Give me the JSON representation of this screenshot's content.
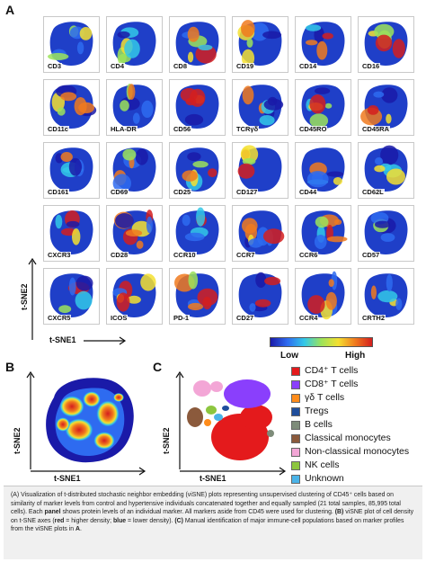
{
  "panel_a": {
    "letter": "A",
    "markers": [
      [
        "CD3",
        "CD4",
        "CD8",
        "CD19",
        "CD14",
        "CD16"
      ],
      [
        "CD11c",
        "HLA-DR",
        "CD56",
        "TCRγδ",
        "CD45RO",
        "CD45RA"
      ],
      [
        "CD161",
        "CD69",
        "CD25",
        "CD127",
        "CD44",
        "CD62L"
      ],
      [
        "CXCR3",
        "CD28",
        "CCR10",
        "CCR7",
        "CCR6",
        "CD57"
      ],
      [
        "CXCR5",
        "ICOS",
        "PD-1",
        "CD27",
        "CCR4",
        "CRTH2"
      ]
    ],
    "y_axis": "t-SNE2",
    "x_axis": "t-SNE1",
    "scale_low": "Low",
    "scale_high": "High"
  },
  "panel_b": {
    "letter": "B",
    "y_axis": "t-SNE2",
    "x_axis": "t-SNE1"
  },
  "panel_c": {
    "letter": "C",
    "y_axis": "t-SNE2",
    "x_axis": "t-SNE1",
    "legend": [
      {
        "label": "CD4⁺ T cells",
        "color": "#e41a1c"
      },
      {
        "label": "CD8⁺ T cells",
        "color": "#8a3ffc"
      },
      {
        "label": "γδ T cells",
        "color": "#ff8c1a"
      },
      {
        "label": "Tregs",
        "color": "#1f4e9c"
      },
      {
        "label": "B cells",
        "color": "#7e8c7a"
      },
      {
        "label": "Classical monocytes",
        "color": "#8b5a3c"
      },
      {
        "label": "Non-classical monocytes",
        "color": "#f3a6d6"
      },
      {
        "label": "NK cells",
        "color": "#8dc63f"
      },
      {
        "label": "Unknown",
        "color": "#4ab3e8"
      }
    ]
  },
  "caption": {
    "p1": "(A) Visualization of t-distributed stochastic neighbor embedding (viSNE) plots representing unsupervised clustering of CD45⁺ cells based on similarity of marker levels from control and hypertensive individuals concatenated together and equally sampled (21 total samples, 85,995 total cells). Each ",
    "b1": "panel",
    "p2": " shows protein levels of an individual marker. All markers aside from CD45 were used for clustering. ",
    "b2": "(B)",
    "p3": " viSNE plot of cell density on t-SNE axes (",
    "b3": "red",
    "p4": " = higher density; ",
    "b4": "blue",
    "p5": " = lower density). ",
    "b5": "(C)",
    "p6": " Manual identification of major immune-cell populations based on marker profiles from the viSNE plots in ",
    "b6": "A",
    "p7": "."
  }
}
